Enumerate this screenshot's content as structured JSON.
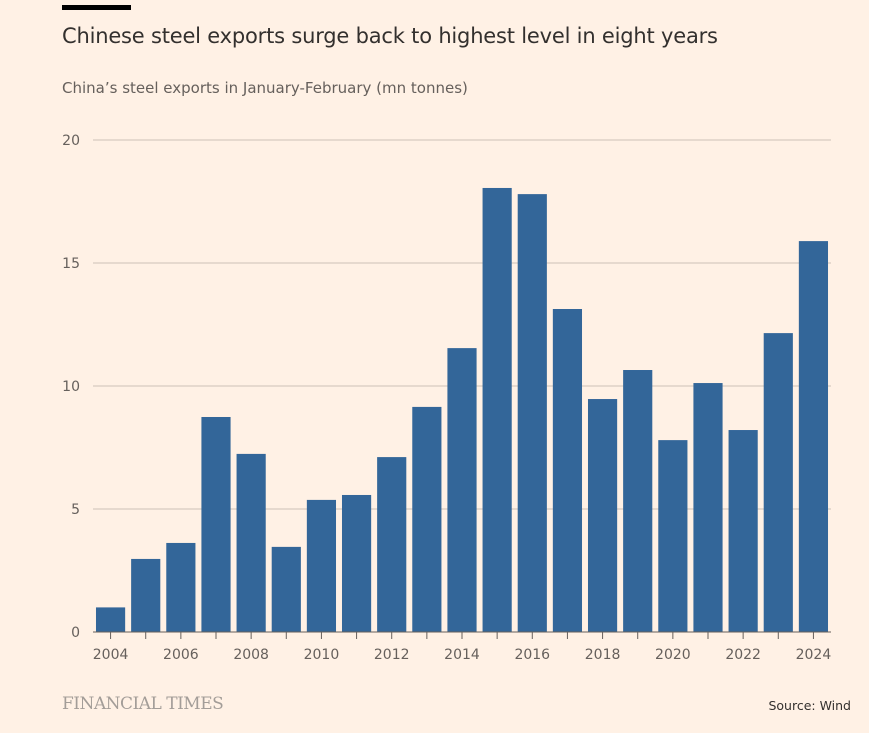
{
  "chart_data": {
    "type": "bar",
    "title": "Chinese steel exports surge back to highest level in eight years",
    "subtitle": "China’s steel exports in January-February (mn tonnes)",
    "categories": [
      "2004",
      "2005",
      "2006",
      "2007",
      "2008",
      "2009",
      "2010",
      "2011",
      "2012",
      "2013",
      "2014",
      "2015",
      "2016",
      "2017",
      "2018",
      "2019",
      "2020",
      "2021",
      "2022",
      "2023",
      "2024"
    ],
    "values": [
      1.0,
      2.97,
      3.62,
      8.74,
      7.24,
      3.46,
      5.37,
      5.57,
      7.11,
      9.15,
      11.54,
      18.05,
      17.8,
      13.13,
      9.47,
      10.65,
      7.8,
      10.12,
      8.21,
      12.15,
      15.89
    ],
    "x_tick_labels": [
      "2004",
      "2006",
      "2008",
      "2010",
      "2012",
      "2014",
      "2016",
      "2018",
      "2020",
      "2022",
      "2024"
    ],
    "y_ticks": [
      "0",
      "5",
      "10",
      "15",
      "20"
    ],
    "ylim": [
      0,
      20
    ],
    "grid": true,
    "bar_color": "#336699",
    "source": "Source: Wind",
    "logo": "FINANCIAL TIMES"
  }
}
